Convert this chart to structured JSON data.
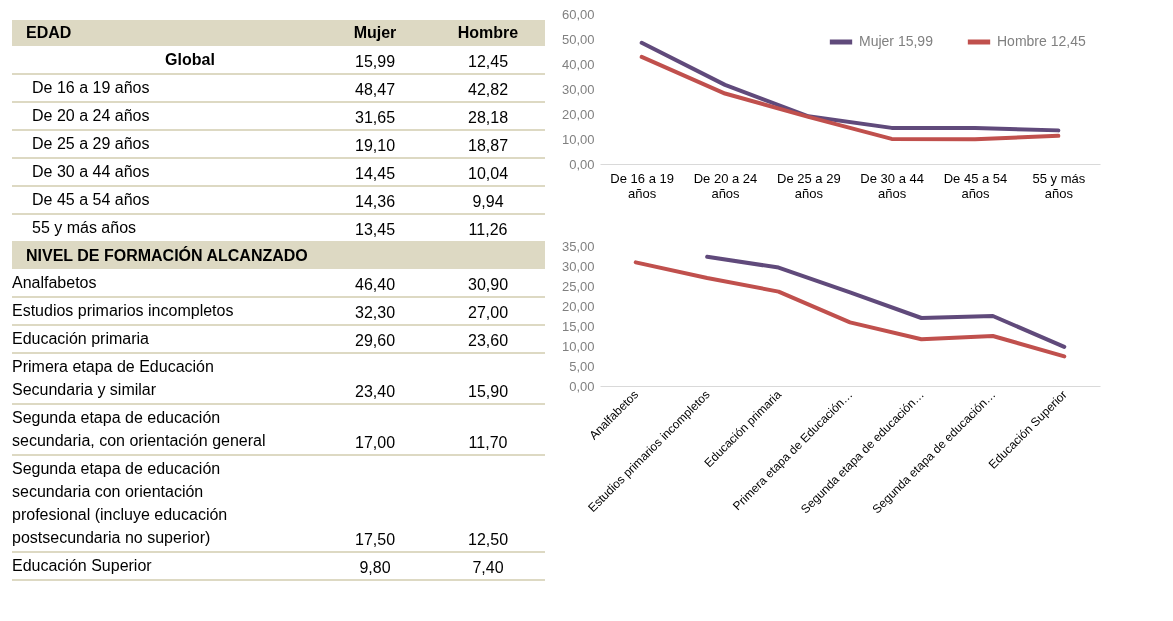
{
  "chart_data": [
    {
      "type": "other",
      "annotations": [
        "EDAD",
        "Mujer",
        "Hombre",
        "Global",
        "15,99",
        "12,45",
        "De 16 a 19 años",
        "48,47",
        "42,82",
        "De 20 a 24 años",
        "31,65",
        "28,18",
        "De 25 a 29 años",
        "19,10",
        "18,87",
        "De 30 a 44 años",
        "14,45",
        "10,04",
        "De 45 a 54 años",
        "14,36",
        "9,94",
        "55 y más años",
        "13,45",
        "11,26",
        "NIVEL DE FORMACIÓN ALCANZADO",
        "Analfabetos",
        "46,40",
        "30,90",
        "Estudios primarios incompletos",
        "32,30",
        "27,00",
        "Educación primaria",
        "29,60",
        "23,60",
        "Primera etapa de Educación Secundaria y similar",
        "23,40",
        "15,90",
        "Segunda etapa de educación secundaria, con orientación general",
        "17,00",
        "11,70",
        "Segunda etapa de educación secundaria con orientación profesional (incluye educación postsecundaria no superior)",
        "17,50",
        "12,50",
        "Educación Superior",
        "9,80",
        "7,40"
      ]
    },
    {
      "type": "line",
      "categories": [
        "De 16 a 19 años",
        "De 20 a 24 años",
        "De 25 a 29 años",
        "De 30 a 44 años",
        "De 45 a 54 años",
        "55 y más años"
      ],
      "series": [
        {
          "name": "Mujer  15,99",
          "color": "#604a7b",
          "values": [
            48.47,
            31.65,
            19.1,
            14.45,
            14.36,
            13.45
          ]
        },
        {
          "name": "Hombre 12,45",
          "color": "#c0504d",
          "values": [
            42.82,
            28.18,
            18.87,
            10.04,
            9.94,
            11.26
          ]
        }
      ],
      "ylim": [
        0,
        60
      ],
      "yticks": [
        {
          "value": 0,
          "label": "0,00"
        },
        {
          "value": 10,
          "label": "10,00"
        },
        {
          "value": 20,
          "label": "20,00"
        },
        {
          "value": 30,
          "label": "30,00"
        },
        {
          "value": 40,
          "label": "40,00"
        },
        {
          "value": 50,
          "label": "50,00"
        },
        {
          "value": 60,
          "label": "60,00"
        }
      ],
      "grid": false,
      "legend": "top right",
      "marker": "none",
      "line_style": "solid"
    },
    {
      "type": "line",
      "categories": [
        "Analfabetos",
        "Estudios primarios incompletos",
        "Educación primaria",
        "Primera etapa de Educación…",
        "Segunda etapa de educación…",
        "Segunda etapa de educación…",
        "Educación Superior"
      ],
      "series": [
        {
          "color": "#604a7b",
          "values": [
            null,
            32.3,
            29.6,
            23.4,
            17.0,
            17.5,
            9.8
          ]
        },
        {
          "color": "#c0504d",
          "values": [
            30.9,
            27.0,
            23.6,
            15.9,
            11.7,
            12.5,
            7.4
          ]
        }
      ],
      "ylim": [
        0,
        35
      ],
      "yticks": [
        {
          "value": 0,
          "label": "0,00"
        },
        {
          "value": 5,
          "label": "5,00"
        },
        {
          "value": 10,
          "label": "10,00"
        },
        {
          "value": 15,
          "label": "15,00"
        },
        {
          "value": 20,
          "label": "20,00"
        },
        {
          "value": 25,
          "label": "25,00"
        },
        {
          "value": 30,
          "label": "30,00"
        },
        {
          "value": 35,
          "label": "35,00"
        }
      ],
      "grid": false,
      "legend": false,
      "marker": "none",
      "line_style": "solid"
    }
  ]
}
